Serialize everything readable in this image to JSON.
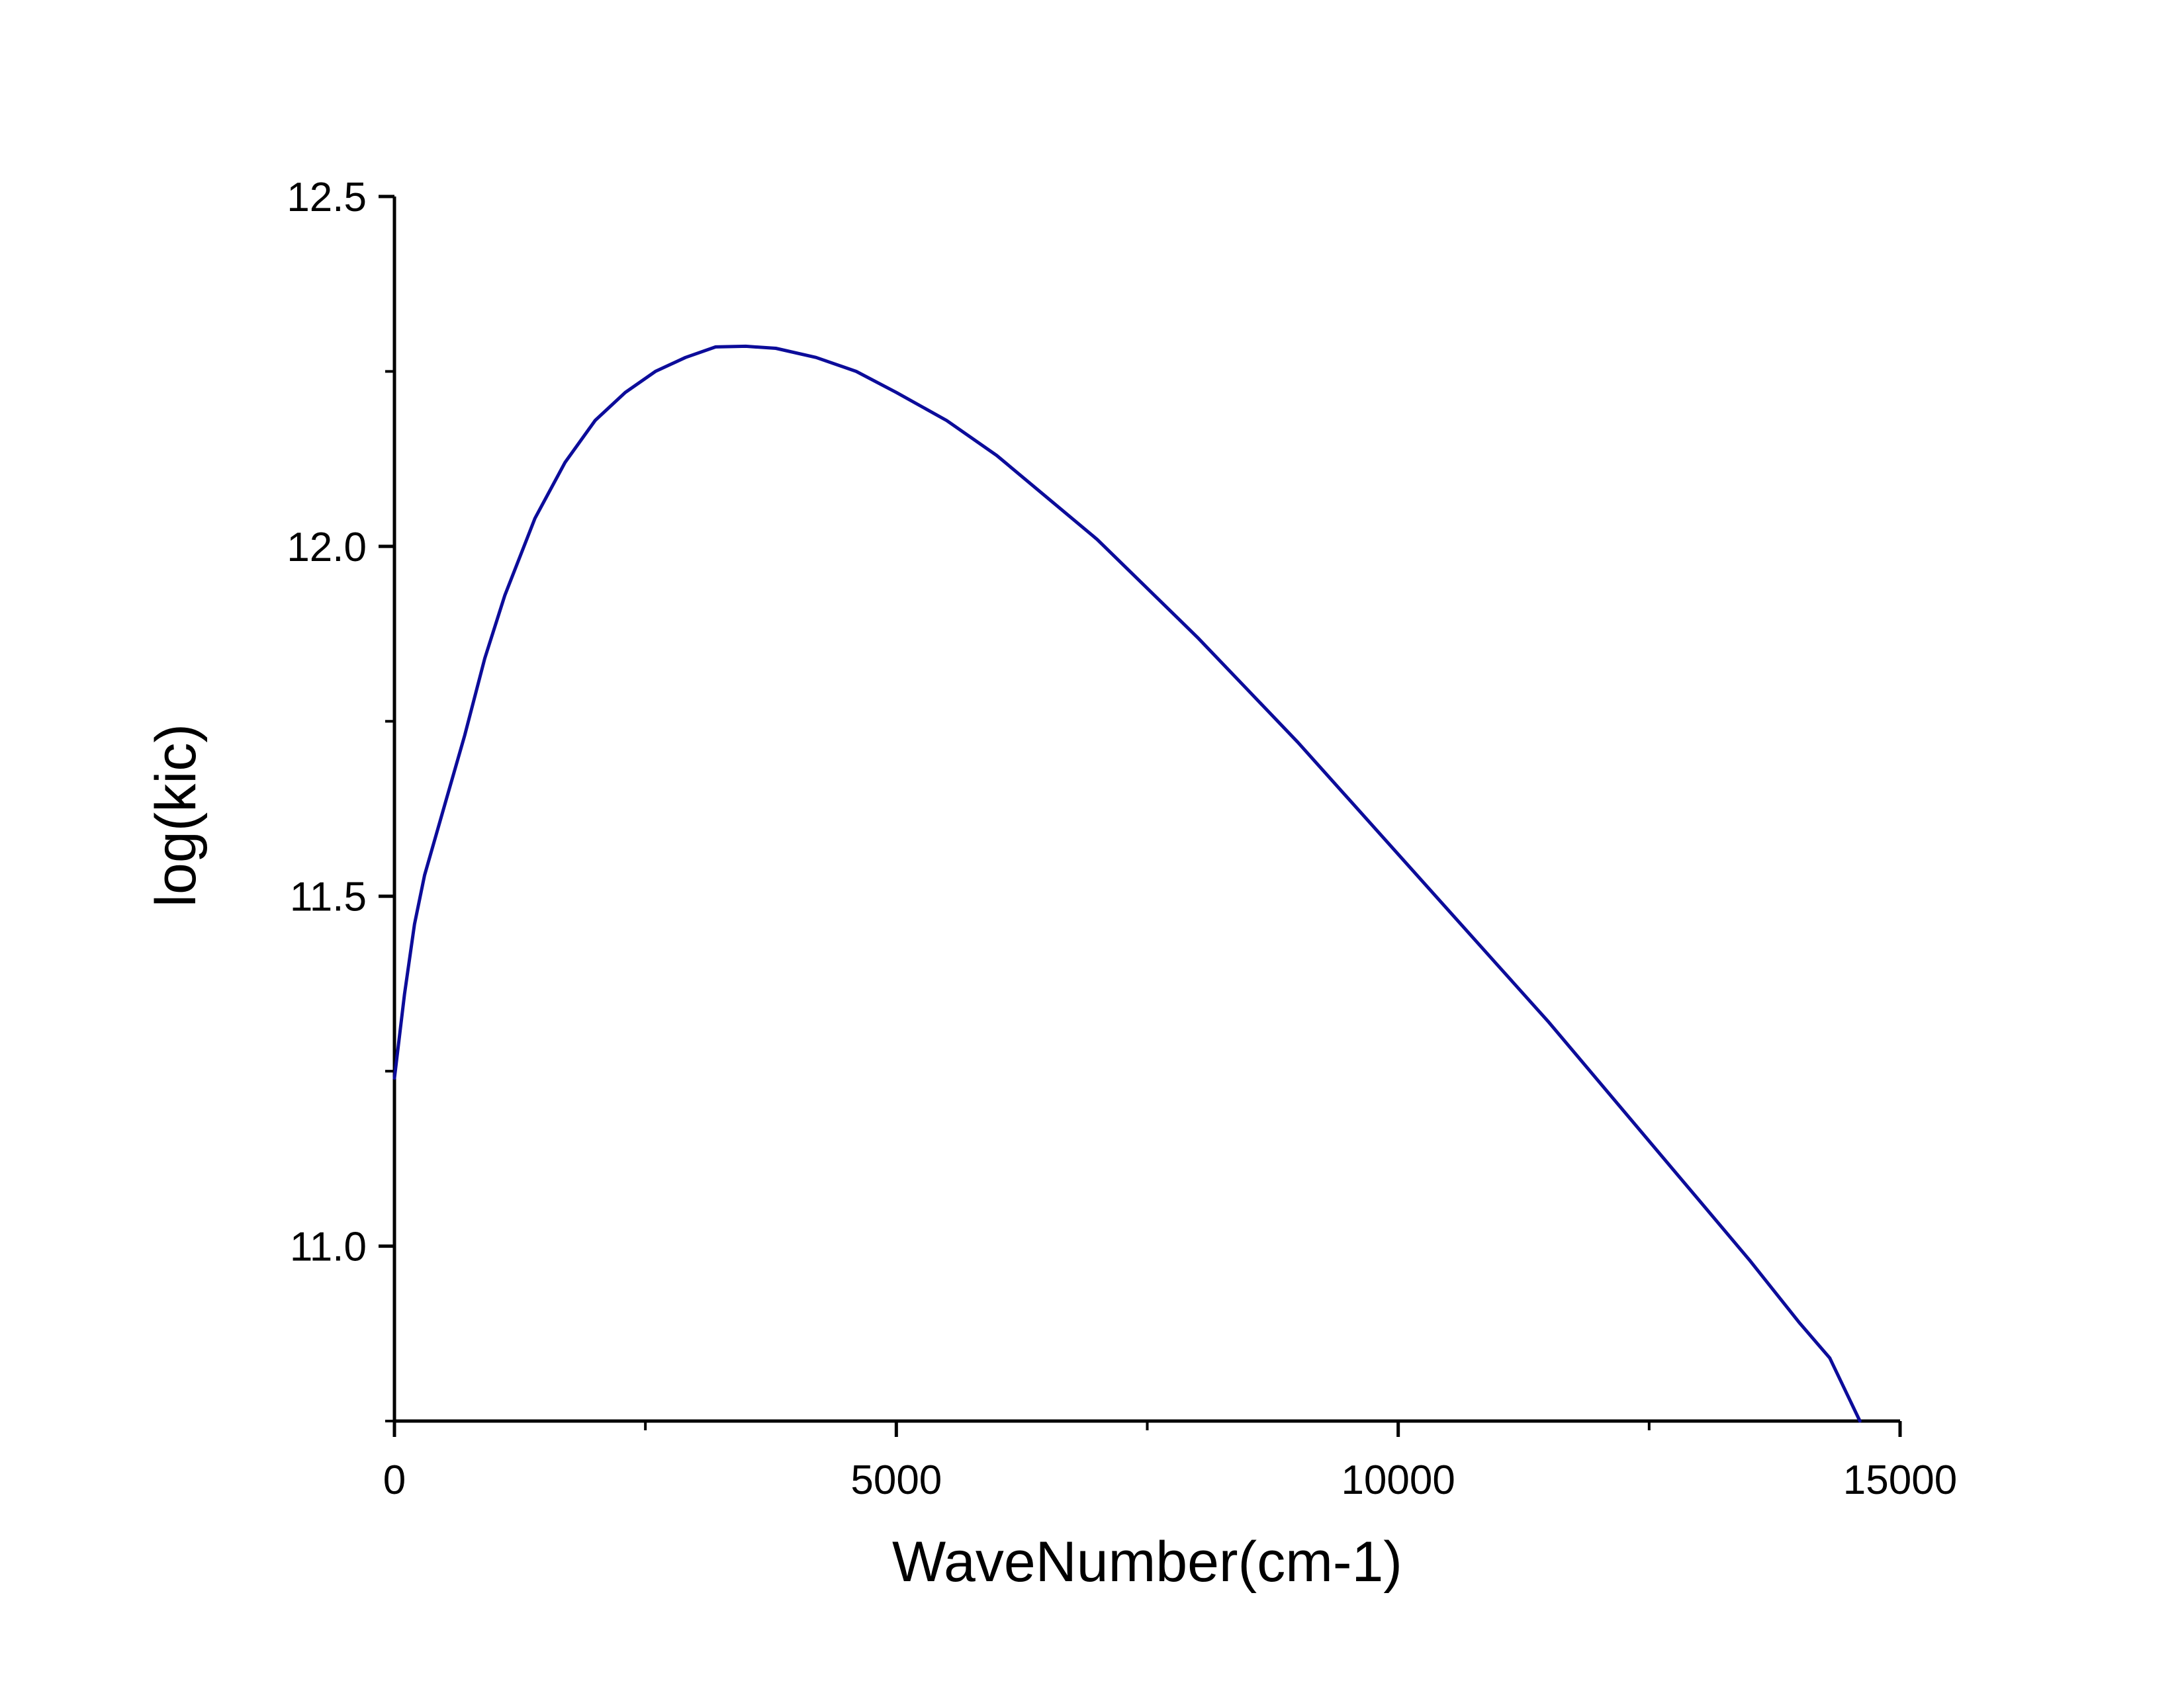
{
  "chart_data": {
    "type": "line",
    "title": "",
    "xlabel": "WaveNumber(cm-1)",
    "ylabel": "log(kic)",
    "xlim": [
      0,
      15000
    ],
    "ylim": [
      10.75,
      12.5
    ],
    "x_ticks": [
      0,
      5000,
      10000,
      15000
    ],
    "x_tick_labels": [
      "0",
      "5000",
      "10000",
      "15000"
    ],
    "x_minor_ticks": [
      2500,
      7500,
      12500
    ],
    "y_ticks": [
      11.0,
      11.5,
      12.0,
      12.5
    ],
    "y_tick_labels": [
      "11.0",
      "11.5",
      "12.0",
      "12.5"
    ],
    "y_minor_ticks": [
      10.75,
      11.25,
      11.75,
      12.25
    ],
    "grid": false,
    "legend": "none",
    "series": [
      {
        "color": "#0c0c9a",
        "x": [
          0,
          100,
          200,
          300,
          500,
          700,
          900,
          1100,
          1400,
          1700,
          2000,
          2300,
          2600,
          2900,
          3200,
          3500,
          3800,
          4200,
          4600,
          5000,
          5500,
          6000,
          6500,
          7000,
          7500,
          8000,
          8500,
          9000,
          9500,
          10000,
          10500,
          11000,
          11500,
          12000,
          12500,
          13000,
          13500,
          14000,
          14300,
          14600
        ],
        "y": [
          11.24,
          11.36,
          11.46,
          11.53,
          11.63,
          11.73,
          11.84,
          11.93,
          12.04,
          12.12,
          12.18,
          12.22,
          12.25,
          12.27,
          12.285,
          12.286,
          12.283,
          12.27,
          12.25,
          12.22,
          12.18,
          12.13,
          12.07,
          12.01,
          11.94,
          11.87,
          11.795,
          11.72,
          11.64,
          11.56,
          11.48,
          11.4,
          11.32,
          11.235,
          11.15,
          11.065,
          10.98,
          10.89,
          10.84,
          10.75
        ]
      }
    ]
  }
}
